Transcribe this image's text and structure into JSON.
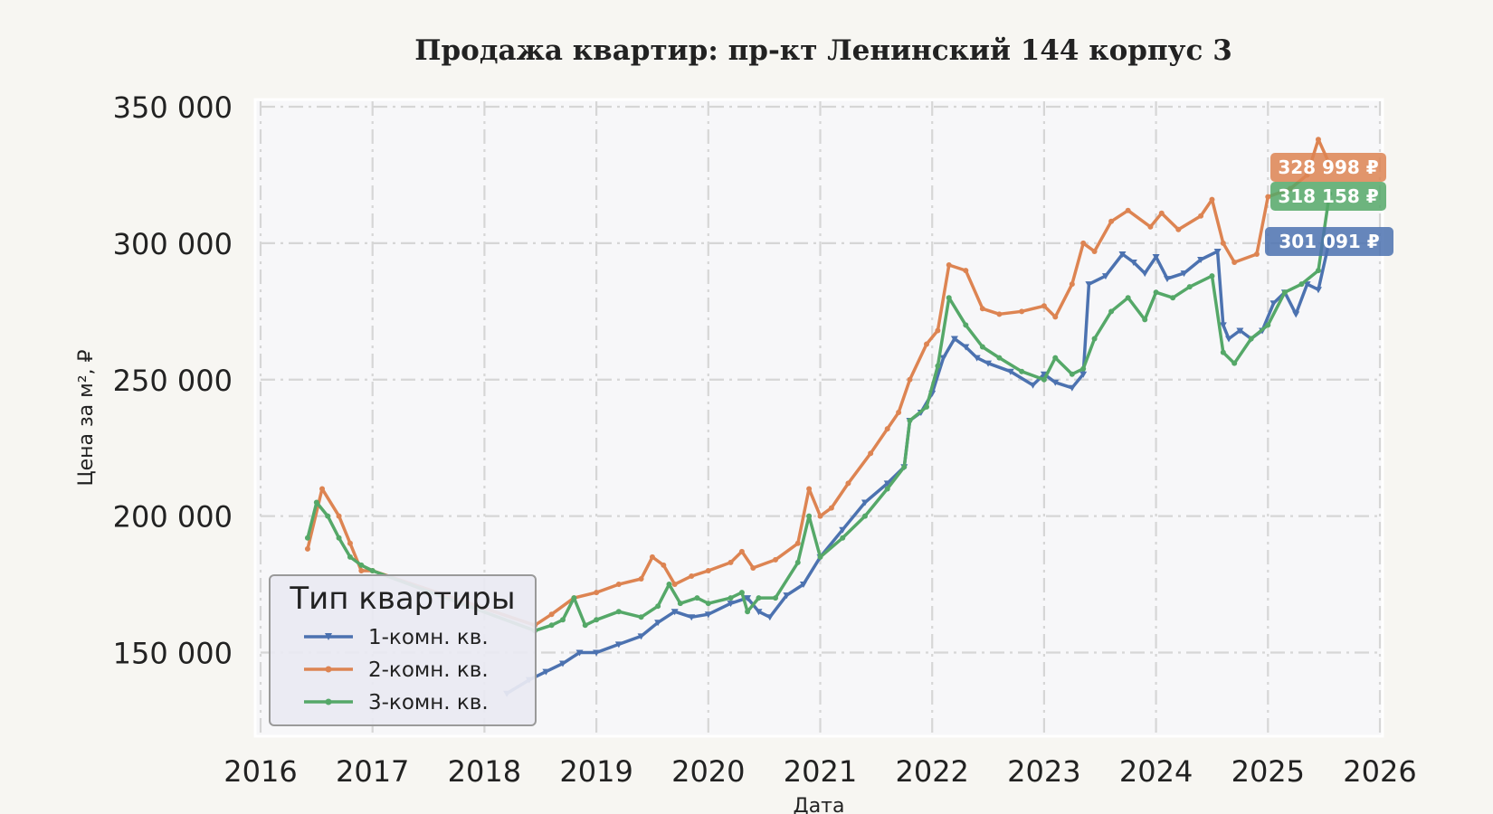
{
  "chart_data": {
    "type": "line",
    "title": "Продажа квартир: пр-кт Ленинский 144 корпус 3",
    "xlabel": "Дата",
    "ylabel": "Цена за м², ₽",
    "xlim": [
      2016.0,
      2026.0
    ],
    "ylim": [
      120000,
      352000
    ],
    "x_ticks": [
      "2016",
      "2017",
      "2018",
      "2019",
      "2020",
      "2021",
      "2022",
      "2023",
      "2024",
      "2025",
      "2026"
    ],
    "y_ticks": [
      "150 000",
      "200 000",
      "250 000",
      "300 000",
      "350 000"
    ],
    "grid": true,
    "legend": {
      "title": "Тип квартиры",
      "placement": "lower-left"
    },
    "series": [
      {
        "name": "1-комн. кв.",
        "color": "#4c72b0",
        "marker": "triangle-down",
        "end_label": "301 091 ₽",
        "x": [
          2018.2,
          2018.4,
          2018.55,
          2018.7,
          2018.85,
          2019.0,
          2019.2,
          2019.4,
          2019.55,
          2019.7,
          2019.85,
          2020.0,
          2020.2,
          2020.35,
          2020.45,
          2020.55,
          2020.7,
          2020.85,
          2021.0,
          2021.2,
          2021.4,
          2021.6,
          2021.75,
          2021.8,
          2021.9,
          2022.0,
          2022.1,
          2022.2,
          2022.3,
          2022.4,
          2022.5,
          2022.7,
          2022.9,
          2023.0,
          2023.1,
          2023.25,
          2023.35,
          2023.4,
          2023.55,
          2023.7,
          2023.8,
          2023.9,
          2024.0,
          2024.1,
          2024.25,
          2024.4,
          2024.55,
          2024.6,
          2024.65,
          2024.75,
          2024.85,
          2024.95,
          2025.05,
          2025.15,
          2025.25,
          2025.35,
          2025.45,
          2025.55
        ],
        "values": [
          135000,
          140000,
          143000,
          146000,
          150000,
          150000,
          153000,
          156000,
          161000,
          165000,
          163000,
          164000,
          168000,
          170000,
          165000,
          163000,
          171000,
          175000,
          185000,
          195000,
          205000,
          212000,
          218000,
          235000,
          238000,
          245000,
          258000,
          265000,
          262000,
          258000,
          256000,
          253000,
          248000,
          252000,
          249000,
          247000,
          252000,
          285000,
          288000,
          296000,
          293000,
          289000,
          295000,
          287000,
          289000,
          294000,
          297000,
          270000,
          265000,
          268000,
          265000,
          268000,
          278000,
          282000,
          274000,
          285000,
          283000,
          301091
        ]
      },
      {
        "name": "2-комн. кв.",
        "color": "#dd8452",
        "marker": "dot",
        "end_label": "328 998 ₽",
        "x": [
          2016.42,
          2016.55,
          2016.7,
          2016.8,
          2016.9,
          2017.0,
          2018.45,
          2018.6,
          2018.8,
          2019.0,
          2019.2,
          2019.4,
          2019.5,
          2019.6,
          2019.7,
          2019.85,
          2020.0,
          2020.2,
          2020.3,
          2020.4,
          2020.6,
          2020.8,
          2020.9,
          2021.0,
          2021.1,
          2021.25,
          2021.45,
          2021.6,
          2021.7,
          2021.8,
          2021.95,
          2022.05,
          2022.15,
          2022.3,
          2022.45,
          2022.6,
          2022.8,
          2023.0,
          2023.1,
          2023.25,
          2023.35,
          2023.45,
          2023.6,
          2023.75,
          2023.95,
          2024.05,
          2024.2,
          2024.4,
          2024.5,
          2024.6,
          2024.7,
          2024.9,
          2025.0,
          2025.2,
          2025.35,
          2025.45,
          2025.55
        ],
        "values": [
          188000,
          210000,
          200000,
          190000,
          180000,
          180000,
          160000,
          164000,
          170000,
          172000,
          175000,
          177000,
          185000,
          182000,
          175000,
          178000,
          180000,
          183000,
          187000,
          181000,
          184000,
          190000,
          210000,
          200000,
          203000,
          212000,
          223000,
          232000,
          238000,
          250000,
          263000,
          268000,
          292000,
          290000,
          276000,
          274000,
          275000,
          277000,
          273000,
          285000,
          300000,
          297000,
          308000,
          312000,
          306000,
          311000,
          305000,
          310000,
          316000,
          300000,
          293000,
          296000,
          317000,
          320000,
          325000,
          338000,
          328998
        ]
      },
      {
        "name": "3-комн. кв.",
        "color": "#55a868",
        "marker": "dot",
        "end_label": "318 158 ₽",
        "x": [
          2016.42,
          2016.5,
          2016.6,
          2016.7,
          2016.8,
          2016.9,
          2017.0,
          2018.45,
          2018.6,
          2018.7,
          2018.8,
          2018.9,
          2019.0,
          2019.2,
          2019.4,
          2019.55,
          2019.65,
          2019.75,
          2019.9,
          2020.0,
          2020.2,
          2020.3,
          2020.35,
          2020.45,
          2020.6,
          2020.8,
          2020.9,
          2021.0,
          2021.2,
          2021.4,
          2021.6,
          2021.75,
          2021.8,
          2021.95,
          2022.05,
          2022.15,
          2022.3,
          2022.45,
          2022.6,
          2022.8,
          2023.0,
          2023.1,
          2023.25,
          2023.35,
          2023.45,
          2023.6,
          2023.75,
          2023.9,
          2024.0,
          2024.15,
          2024.3,
          2024.5,
          2024.6,
          2024.7,
          2024.85,
          2025.0,
          2025.15,
          2025.3,
          2025.45,
          2025.55
        ],
        "values": [
          192000,
          205000,
          200000,
          192000,
          185000,
          182000,
          180000,
          158000,
          160000,
          162000,
          170000,
          160000,
          162000,
          165000,
          163000,
          167000,
          175000,
          168000,
          170000,
          168000,
          170000,
          172000,
          165000,
          170000,
          170000,
          183000,
          200000,
          185000,
          192000,
          200000,
          210000,
          218000,
          235000,
          240000,
          255000,
          280000,
          270000,
          262000,
          258000,
          253000,
          250000,
          258000,
          252000,
          254000,
          265000,
          275000,
          280000,
          272000,
          282000,
          280000,
          284000,
          288000,
          260000,
          256000,
          265000,
          270000,
          282000,
          285000,
          290000,
          318158
        ]
      }
    ]
  }
}
